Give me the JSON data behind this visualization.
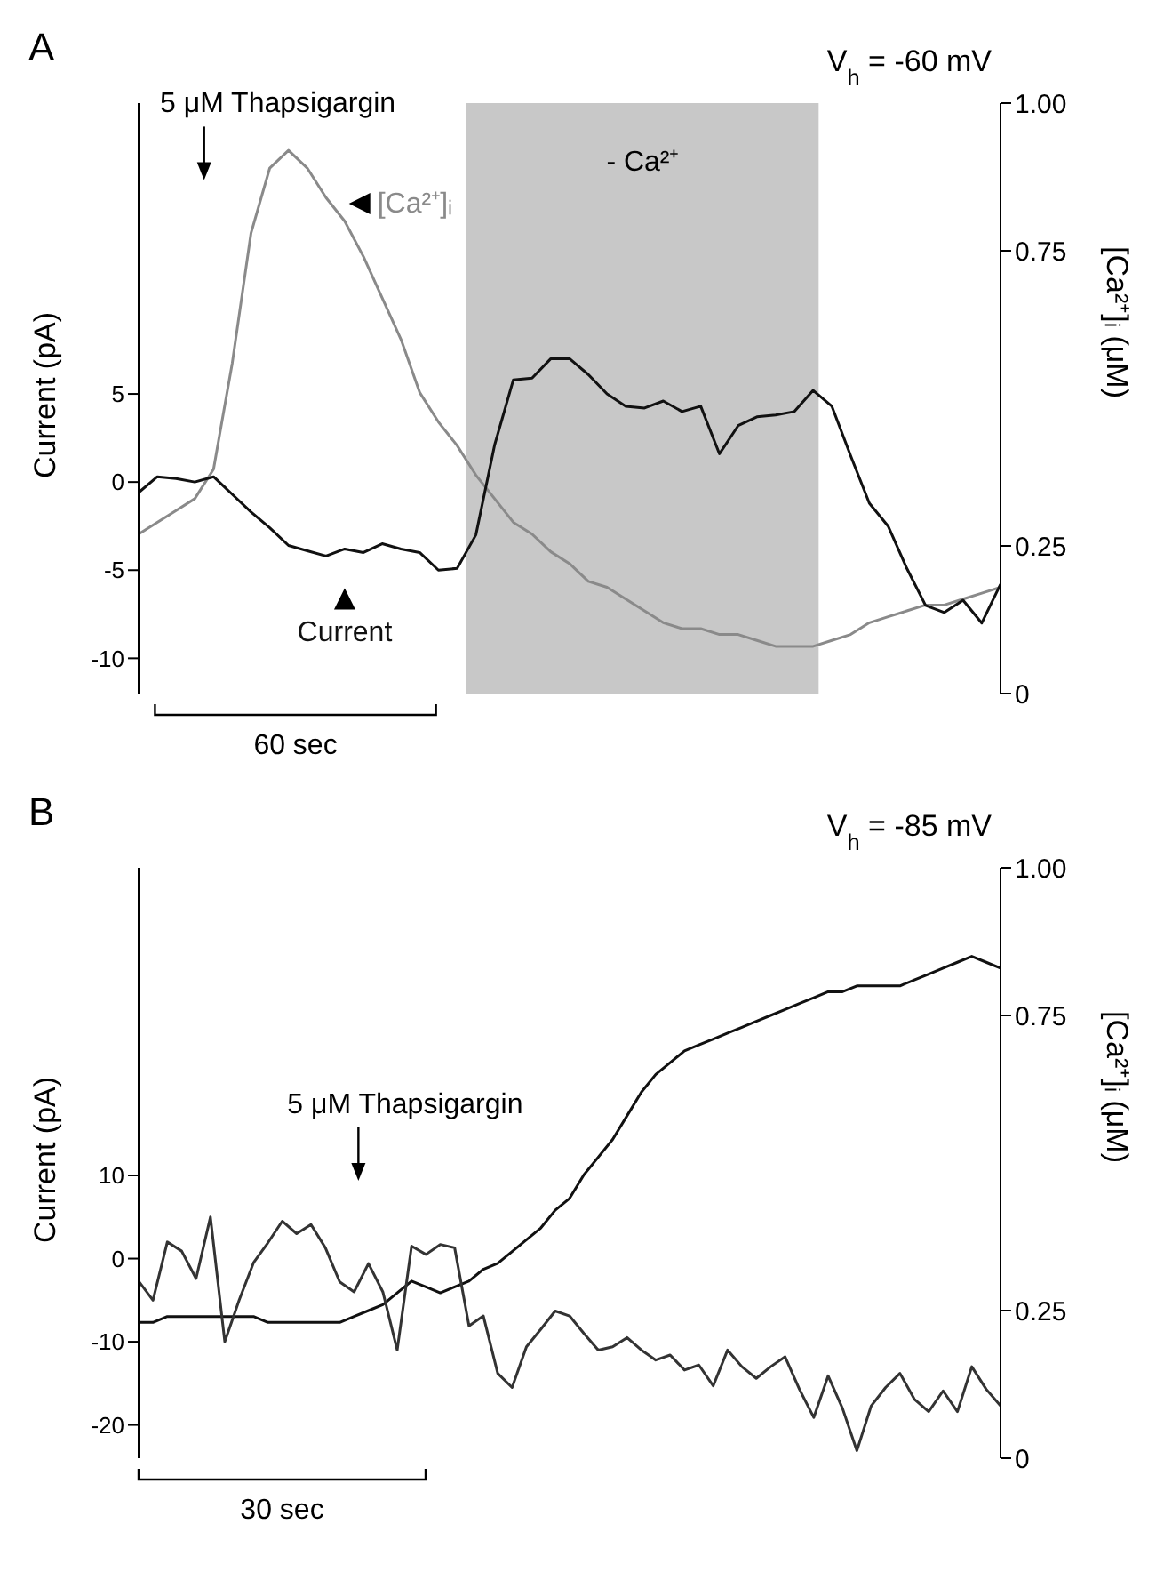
{
  "chart_data": [
    {
      "type": "line",
      "title": "A",
      "xlabel": "60 sec",
      "ylabel": "Current (pA)",
      "y2label": "[Ca²⁺]ᵢ (μM)",
      "categories": [
        null,
        null,
        null,
        null,
        null,
        null,
        null,
        null,
        null,
        null,
        null,
        null,
        null,
        null,
        null,
        null,
        null,
        null,
        null,
        null,
        null,
        null,
        null,
        null,
        null,
        null,
        null,
        null,
        null,
        null,
        null,
        null,
        null,
        null,
        null,
        null,
        null,
        null,
        null,
        null,
        null,
        null,
        null,
        null,
        null,
        null,
        null
      ],
      "ylim": [
        -12,
        21.5
      ],
      "yticks": [
        -10,
        -5,
        0,
        5
      ],
      "y2lim": [
        0,
        1
      ],
      "y2ticks": [
        0,
        0.25,
        0.75,
        {
          "value": 1,
          "label": "1.00"
        }
      ],
      "annotations": [
        "5 μM Thapsigargin",
        "V$_{h}$ = -60 mV",
        "- Ca²⁺"
      ],
      "series": [
        {
          "name": "[Ca²⁺]ᵢ",
          "color": "#8a8a8a",
          "axis": "y2",
          "values": [
            0.27,
            0.29,
            0.31,
            0.33,
            0.38,
            0.56,
            0.78,
            0.89,
            0.92,
            0.89,
            0.84,
            0.8,
            0.74,
            0.67,
            0.6,
            0.51,
            0.46,
            0.42,
            0.37,
            0.33,
            0.29,
            0.27,
            0.24,
            0.22,
            0.19,
            0.18,
            0.16,
            0.14,
            0.12,
            0.11,
            0.11,
            0.1,
            0.1,
            0.09,
            0.08,
            0.08,
            0.08,
            0.09,
            0.1,
            0.12,
            0.13,
            0.14,
            0.15,
            0.15,
            0.16,
            0.17,
            0.18
          ]
        },
        {
          "name": "Current",
          "color": "#111111",
          "values": [
            -0.6,
            0.3,
            0.2,
            0,
            0.3,
            -0.7,
            -1.7,
            -2.6,
            -3.6,
            -3.9,
            -4.2,
            -3.8,
            -4,
            -3.5,
            -3.8,
            -4,
            -5,
            -4.9,
            -3,
            2.1,
            5.8,
            5.9,
            7,
            7,
            6.1,
            5,
            4.3,
            4.2,
            4.6,
            4,
            4.3,
            1.6,
            3.2,
            3.7,
            3.8,
            4,
            5.2,
            4.3,
            1.5,
            -1.2,
            -2.5,
            -4.9,
            -7,
            -7.4,
            -6.7,
            -8,
            -5.8
          ]
        }
      ]
    },
    {
      "type": "line",
      "title": "B",
      "xlabel": "30 sec",
      "ylabel": "Current (pA)",
      "y2label": "[Ca²⁺]ᵢ (μM)",
      "categories": [
        null,
        null,
        null,
        null,
        null,
        null,
        null,
        null,
        null,
        null,
        null,
        null,
        null,
        null,
        null,
        null,
        null,
        null,
        null,
        null,
        null,
        null,
        null,
        null,
        null,
        null,
        null,
        null,
        null,
        null,
        null,
        null,
        null,
        null,
        null,
        null,
        null,
        null,
        null,
        null,
        null,
        null,
        null,
        null,
        null,
        null,
        null,
        null,
        null,
        null,
        null,
        null,
        null,
        null,
        null,
        null,
        null,
        null,
        null,
        null,
        null
      ],
      "ylim": [
        -24,
        47
      ],
      "yticks": [
        -20,
        -10,
        0,
        10
      ],
      "y2lim": [
        0,
        1
      ],
      "y2ticks": [
        0,
        0.25,
        0.75,
        {
          "value": 1,
          "label": "1.00"
        }
      ],
      "annotations": [
        "5 μM Thapsigargin",
        "V$_{h}$ = -85 mV"
      ],
      "series": [
        {
          "color": "#111111",
          "axis": "y2",
          "values": [
            0.23,
            0.23,
            0.24,
            0.24,
            0.24,
            0.24,
            0.24,
            0.24,
            0.24,
            0.23,
            0.23,
            0.23,
            0.23,
            0.23,
            0.23,
            0.24,
            0.25,
            0.26,
            0.28,
            0.3,
            0.29,
            0.28,
            0.29,
            0.3,
            0.32,
            0.33,
            0.35,
            0.37,
            0.39,
            0.42,
            0.44,
            0.48,
            0.51,
            0.54,
            0.58,
            0.62,
            0.65,
            0.67,
            0.69,
            0.7,
            0.71,
            0.72,
            0.73,
            0.74,
            0.75,
            0.76,
            0.77,
            0.78,
            0.79,
            0.79,
            0.8,
            0.8,
            0.8,
            0.8,
            0.81,
            0.82,
            0.83,
            0.84,
            0.85,
            0.84,
            0.83
          ]
        },
        {
          "color": "#333333",
          "values": [
            -2.7,
            -5,
            2,
            0.9,
            -2.4,
            5,
            -10,
            -5,
            -0.5,
            1.9,
            4.5,
            3,
            4.1,
            1.3,
            -2.8,
            -4,
            -0.6,
            -4,
            -11,
            1.5,
            0.5,
            1.7,
            1.3,
            -8.1,
            -6.9,
            -13.8,
            -15.5,
            -10.6,
            -8.5,
            -6.3,
            -6.9,
            -9,
            -11,
            -10.6,
            -9.5,
            -11,
            -12.2,
            -11.6,
            -13.4,
            -12.8,
            -15.3,
            -11,
            -13,
            -14.4,
            -13,
            -11.8,
            -15.7,
            -19.1,
            -14.1,
            -18,
            -23.1,
            -17.7,
            -15.5,
            -13.8,
            -16.9,
            -18.4,
            -15.9,
            -18.4,
            -13,
            -15.7,
            -17.7
          ]
        }
      ]
    }
  ]
}
